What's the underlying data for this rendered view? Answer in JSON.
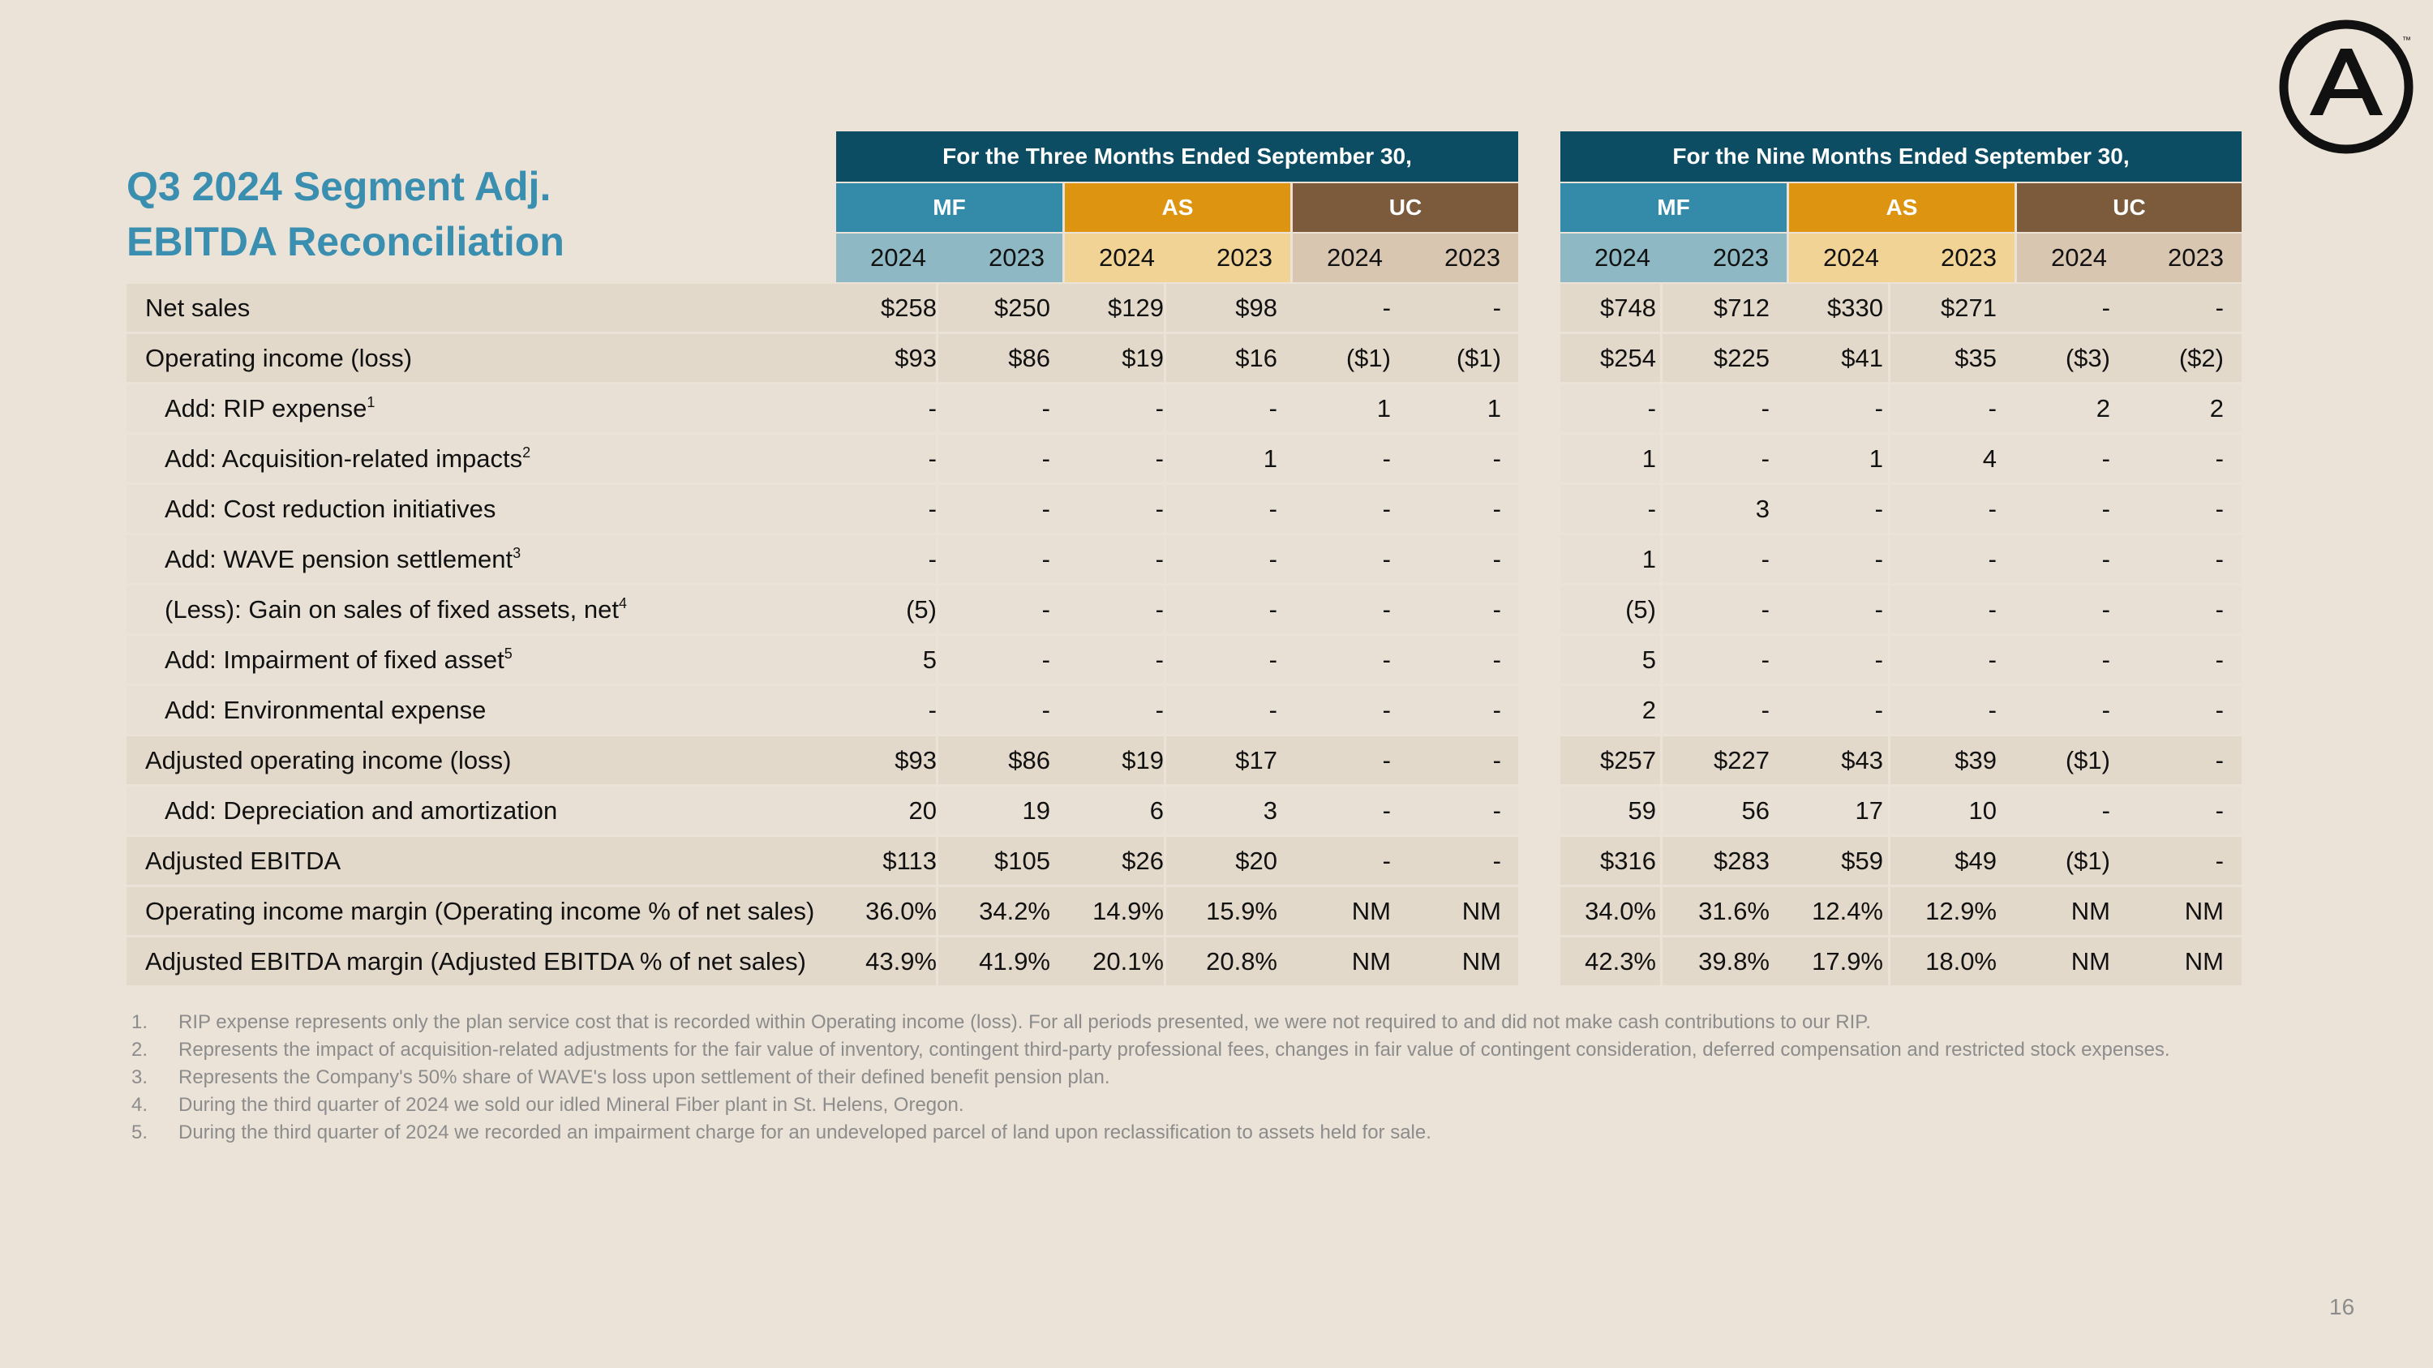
{
  "title": {
    "line1": "Q3 2024 Segment Adj.",
    "line2": "EBITDA Reconciliation"
  },
  "headers": {
    "three_months": "For the Three Months Ended September 30,",
    "nine_months": "For the Nine Months Ended September 30,",
    "segments": [
      "MF",
      "AS",
      "UC"
    ],
    "years": [
      "2024",
      "2023"
    ]
  },
  "colors": {
    "period_header": "#0c4d63",
    "mf": "#338ba9",
    "as": "#dd9410",
    "uc": "#7b5b3b",
    "mf_year": "#8eb9c4",
    "as_year": "#f1d396",
    "uc_year": "#d8c6b1",
    "title": "#3a8fb0"
  },
  "rows": [
    {
      "label": "Net sales",
      "sup": "",
      "values": [
        "$258",
        "$250",
        "$129",
        "$98",
        "-",
        "-",
        "$748",
        "$712",
        "$330",
        "$271",
        "-",
        "-"
      ]
    },
    {
      "label": "Operating income (loss)",
      "sup": "",
      "values": [
        "$93",
        "$86",
        "$19",
        "$16",
        "($1)",
        "($1)",
        "$254",
        "$225",
        "$41",
        "$35",
        "($3)",
        "($2)"
      ]
    },
    {
      "label": "Add: RIP expense",
      "sup": "1",
      "values": [
        "-",
        "-",
        "-",
        "-",
        "1",
        "1",
        "-",
        "-",
        "-",
        "-",
        "2",
        "2"
      ]
    },
    {
      "label": "Add: Acquisition-related impacts",
      "sup": "2",
      "values": [
        "-",
        "-",
        "-",
        "1",
        "-",
        "-",
        "1",
        "-",
        "1",
        "4",
        "-",
        "-"
      ]
    },
    {
      "label": "Add: Cost reduction initiatives",
      "sup": "",
      "values": [
        "-",
        "-",
        "-",
        "-",
        "-",
        "-",
        "-",
        "3",
        "-",
        "-",
        "-",
        "-"
      ]
    },
    {
      "label": "Add: WAVE pension settlement",
      "sup": "3",
      "values": [
        "-",
        "-",
        "-",
        "-",
        "-",
        "-",
        "1",
        "-",
        "-",
        "-",
        "-",
        "-"
      ]
    },
    {
      "label": "(Less): Gain on sales of fixed assets, net",
      "sup": "4",
      "values": [
        "(5)",
        "-",
        "-",
        "-",
        "-",
        "-",
        "(5)",
        "-",
        "-",
        "-",
        "-",
        "-"
      ]
    },
    {
      "label": "Add: Impairment of fixed asset",
      "sup": "5",
      "values": [
        "5",
        "-",
        "-",
        "-",
        "-",
        "-",
        "5",
        "-",
        "-",
        "-",
        "-",
        "-"
      ]
    },
    {
      "label": "Add: Environmental expense",
      "sup": "",
      "values": [
        "-",
        "-",
        "-",
        "-",
        "-",
        "-",
        "2",
        "-",
        "-",
        "-",
        "-",
        "-"
      ]
    },
    {
      "label": "Adjusted operating income (loss)",
      "sup": "",
      "values": [
        "$93",
        "$86",
        "$19",
        "$17",
        "-",
        "-",
        "$257",
        "$227",
        "$43",
        "$39",
        "($1)",
        "-"
      ]
    },
    {
      "label": "Add: Depreciation and amortization",
      "sup": "",
      "values": [
        "20",
        "19",
        "6",
        "3",
        "-",
        "-",
        "59",
        "56",
        "17",
        "10",
        "-",
        "-"
      ]
    },
    {
      "label": "Adjusted EBITDA",
      "sup": "",
      "values": [
        "$113",
        "$105",
        "$26",
        "$20",
        "-",
        "-",
        "$316",
        "$283",
        "$59",
        "$49",
        "($1)",
        "-"
      ]
    },
    {
      "label": "Operating income margin (Operating income % of net sales)",
      "sup": "",
      "values": [
        "36.0%",
        "34.2%",
        "14.9%",
        "15.9%",
        "NM",
        "NM",
        "34.0%",
        "31.6%",
        "12.4%",
        "12.9%",
        "NM",
        "NM"
      ]
    },
    {
      "label": "Adjusted EBITDA margin (Adjusted EBITDA % of net sales)",
      "sup": "",
      "values": [
        "43.9%",
        "41.9%",
        "20.1%",
        "20.8%",
        "NM",
        "NM",
        "42.3%",
        "39.8%",
        "17.9%",
        "18.0%",
        "NM",
        "NM"
      ]
    }
  ],
  "footnotes": [
    {
      "num": "1.",
      "text": "RIP expense represents only the plan service cost that is recorded within Operating income (loss). For all periods presented, we were not required to and did not make cash contributions to our RIP."
    },
    {
      "num": "2.",
      "text": "Represents the impact of acquisition-related adjustments for the fair value of inventory, contingent third-party professional fees, changes in fair value of contingent consideration, deferred compensation and restricted stock expenses."
    },
    {
      "num": "3.",
      "text": "Represents the Company's 50% share of WAVE's loss upon settlement of their defined benefit pension plan."
    },
    {
      "num": "4.",
      "text": "During the third quarter of 2024 we sold our idled Mineral Fiber plant in St. Helens, Oregon."
    },
    {
      "num": "5.",
      "text": "During the third quarter of 2024 we recorded an impairment charge for an undeveloped parcel of land upon reclassification to assets held for sale."
    }
  ],
  "page_number": "16",
  "logo": {
    "icon": "armstrong-a-logo-icon",
    "tm": "™"
  }
}
